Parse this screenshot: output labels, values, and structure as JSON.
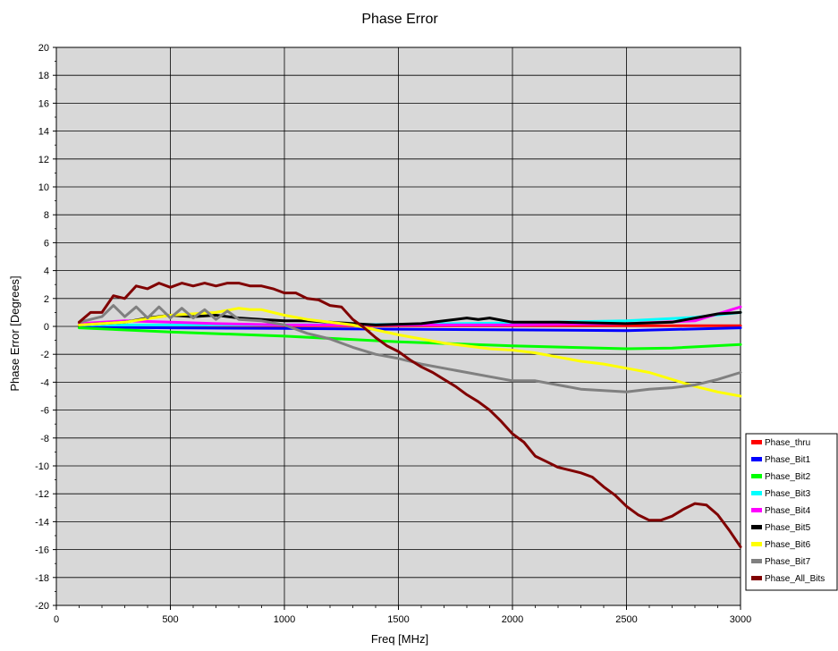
{
  "chart_data": {
    "type": "line",
    "title": "Phase Error",
    "xlabel": "Freq [MHz]",
    "ylabel": "Phase Error [Degrees]",
    "xlim": [
      0,
      3000
    ],
    "ylim": [
      -20,
      20
    ],
    "xticks": [
      0,
      500,
      1000,
      1500,
      2000,
      2500,
      3000
    ],
    "yticks": [
      -20,
      -18,
      -16,
      -14,
      -12,
      -10,
      -8,
      -6,
      -4,
      -2,
      0,
      2,
      4,
      6,
      8,
      10,
      12,
      14,
      16,
      18,
      20
    ],
    "grid": true,
    "plot_background": "#d8d8d8",
    "legend_position": "right",
    "series": [
      {
        "name": "Phase_thru",
        "color": "#ff0000",
        "x": [
          100,
          500,
          1000,
          1500,
          2000,
          2500,
          3000
        ],
        "y": [
          0.05,
          0.05,
          0.05,
          0.05,
          0.05,
          0.05,
          0.05
        ]
      },
      {
        "name": "Phase_Bit1",
        "color": "#0000ff",
        "x": [
          100,
          500,
          1000,
          1500,
          2000,
          2500,
          3000
        ],
        "y": [
          -0.05,
          -0.1,
          -0.15,
          -0.2,
          -0.25,
          -0.3,
          -0.1
        ]
      },
      {
        "name": "Phase_Bit2",
        "color": "#00ff00",
        "x": [
          100,
          500,
          1000,
          1500,
          2000,
          2500,
          2700,
          3000
        ],
        "y": [
          -0.1,
          -0.4,
          -0.7,
          -1.1,
          -1.4,
          -1.6,
          -1.55,
          -1.3
        ]
      },
      {
        "name": "Phase_Bit3",
        "color": "#00ffff",
        "x": [
          100,
          500,
          1000,
          1500,
          2000,
          2500,
          2800,
          3000
        ],
        "y": [
          0.1,
          0.1,
          0.1,
          0.15,
          0.25,
          0.4,
          0.65,
          1.0
        ]
      },
      {
        "name": "Phase_Bit4",
        "color": "#ff00ff",
        "x": [
          100,
          300,
          500,
          700,
          1000,
          1500,
          2000,
          2500,
          2800,
          2900,
          3000
        ],
        "y": [
          0.2,
          0.4,
          0.3,
          0.2,
          0.1,
          0.1,
          0.1,
          0.2,
          0.4,
          0.9,
          1.4
        ]
      },
      {
        "name": "Phase_Bit5",
        "color": "#000000",
        "x": [
          100,
          300,
          400,
          500,
          600,
          700,
          800,
          900,
          1000,
          1100,
          1200,
          1400,
          1600,
          1700,
          1800,
          1850,
          1900,
          2000,
          2200,
          2500,
          2700,
          2900,
          3000
        ],
        "y": [
          0.1,
          0.3,
          0.6,
          0.8,
          0.7,
          0.8,
          0.6,
          0.5,
          0.4,
          0.4,
          0.3,
          0.1,
          0.2,
          0.4,
          0.6,
          0.5,
          0.6,
          0.3,
          0.3,
          0.2,
          0.3,
          0.9,
          1.0
        ]
      },
      {
        "name": "Phase_Bit6",
        "color": "#ffff00",
        "x": [
          100,
          300,
          500,
          700,
          800,
          850,
          900,
          1000,
          1100,
          1300,
          1500,
          1700,
          1900,
          2000,
          2100,
          2200,
          2300,
          2400,
          2500,
          2600,
          2700,
          2800,
          2900,
          3000
        ],
        "y": [
          0.1,
          0.3,
          0.8,
          1.0,
          1.3,
          1.2,
          1.2,
          0.8,
          0.5,
          0.1,
          -0.6,
          -1.2,
          -1.6,
          -1.7,
          -1.9,
          -2.2,
          -2.5,
          -2.7,
          -3.0,
          -3.3,
          -3.8,
          -4.3,
          -4.7,
          -5.0
        ]
      },
      {
        "name": "Phase_Bit7",
        "color": "#808080",
        "x": [
          100,
          200,
          250,
          300,
          350,
          400,
          450,
          500,
          550,
          600,
          650,
          700,
          750,
          800,
          900,
          1000,
          1100,
          1200,
          1300,
          1400,
          1500,
          1600,
          1700,
          1800,
          1900,
          2000,
          2100,
          2200,
          2300,
          2400,
          2500,
          2600,
          2700,
          2800,
          2900,
          3000
        ],
        "y": [
          0.3,
          0.7,
          1.5,
          0.7,
          1.4,
          0.6,
          1.4,
          0.6,
          1.3,
          0.6,
          1.2,
          0.5,
          1.1,
          0.5,
          0.4,
          0.1,
          -0.5,
          -0.9,
          -1.5,
          -2.0,
          -2.3,
          -2.7,
          -3.0,
          -3.3,
          -3.6,
          -3.9,
          -3.9,
          -4.2,
          -4.5,
          -4.6,
          -4.7,
          -4.5,
          -4.4,
          -4.2,
          -3.8,
          -3.3
        ]
      },
      {
        "name": "Phase_All_Bits",
        "color": "#800000",
        "x": [
          100,
          150,
          200,
          250,
          300,
          350,
          400,
          450,
          500,
          550,
          600,
          650,
          700,
          750,
          800,
          850,
          900,
          950,
          1000,
          1050,
          1100,
          1150,
          1200,
          1250,
          1300,
          1350,
          1400,
          1450,
          1500,
          1550,
          1600,
          1650,
          1700,
          1750,
          1800,
          1850,
          1900,
          1950,
          2000,
          2050,
          2100,
          2150,
          2200,
          2250,
          2300,
          2350,
          2400,
          2450,
          2500,
          2550,
          2600,
          2650,
          2700,
          2750,
          2800,
          2850,
          2900,
          2950,
          3000
        ],
        "y": [
          0.3,
          1.0,
          1.0,
          2.2,
          2.0,
          2.9,
          2.7,
          3.1,
          2.8,
          3.1,
          2.9,
          3.1,
          2.9,
          3.1,
          3.1,
          2.9,
          2.9,
          2.7,
          2.4,
          2.4,
          2.0,
          1.9,
          1.5,
          1.4,
          0.5,
          -0.1,
          -0.8,
          -1.4,
          -1.8,
          -2.4,
          -2.9,
          -3.3,
          -3.8,
          -4.3,
          -4.9,
          -5.4,
          -6.0,
          -6.8,
          -7.7,
          -8.3,
          -9.3,
          -9.7,
          -10.1,
          -10.3,
          -10.5,
          -10.8,
          -11.5,
          -12.1,
          -12.9,
          -13.5,
          -13.9,
          -13.9,
          -13.6,
          -13.1,
          -12.7,
          -12.8,
          -13.5,
          -14.6,
          -15.8
        ]
      }
    ]
  }
}
